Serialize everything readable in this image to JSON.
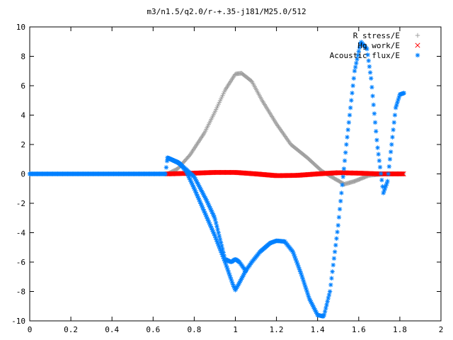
{
  "chart_data": {
    "type": "scatter",
    "title": "m3/n1.5/q2.0/r-+.35-j181/M25.0/512",
    "xlabel": "",
    "ylabel": "",
    "xlim": [
      0,
      2
    ],
    "ylim": [
      -10,
      10
    ],
    "grid": false,
    "legend_position": "top-right",
    "x_ticks": [
      "0",
      "0.2",
      "0.4",
      "0.6",
      "0.8",
      "1",
      "1.2",
      "1.4",
      "1.6",
      "1.8",
      "2"
    ],
    "y_ticks": [
      "10",
      "8",
      "6",
      "4",
      "2",
      "0",
      "-2",
      "-4",
      "-6",
      "-8",
      "-10"
    ],
    "series": [
      {
        "name": "R stress/E",
        "marker": "+",
        "color": "#a0a0a0",
        "x_range": [
          0.67,
          1.82
        ],
        "knots": [
          [
            0.67,
            0.0
          ],
          [
            0.72,
            0.35
          ],
          [
            0.78,
            1.3
          ],
          [
            0.85,
            2.8
          ],
          [
            0.9,
            4.2
          ],
          [
            0.95,
            5.7
          ],
          [
            1.0,
            6.8
          ],
          [
            1.03,
            6.85
          ],
          [
            1.08,
            6.3
          ],
          [
            1.13,
            5.0
          ],
          [
            1.2,
            3.4
          ],
          [
            1.27,
            2.0
          ],
          [
            1.35,
            1.1
          ],
          [
            1.42,
            0.2
          ],
          [
            1.48,
            -0.3
          ],
          [
            1.53,
            -0.7
          ],
          [
            1.58,
            -0.5
          ],
          [
            1.65,
            -0.1
          ],
          [
            1.72,
            0.0
          ],
          [
            1.82,
            0.0
          ]
        ]
      },
      {
        "name": "Hg work/E",
        "marker": "x",
        "color": "#ff0000",
        "x_range": [
          0.67,
          1.82
        ],
        "knots": [
          [
            0.67,
            0.0
          ],
          [
            0.8,
            0.05
          ],
          [
            0.9,
            0.1
          ],
          [
            1.0,
            0.1
          ],
          [
            1.1,
            0.0
          ],
          [
            1.2,
            -0.12
          ],
          [
            1.3,
            -0.1
          ],
          [
            1.4,
            0.0
          ],
          [
            1.5,
            0.08
          ],
          [
            1.6,
            0.05
          ],
          [
            1.7,
            0.0
          ],
          [
            1.82,
            0.0
          ]
        ]
      },
      {
        "name": "Acoustic flux/E",
        "marker": "*",
        "color": "#0080ff",
        "x_range": [
          0.0,
          1.82
        ],
        "knots": [
          [
            0.0,
            0.0
          ],
          [
            0.66,
            0.0
          ],
          [
            0.67,
            1.1
          ],
          [
            0.7,
            0.9
          ],
          [
            0.73,
            0.7
          ],
          [
            0.76,
            0.2
          ],
          [
            0.8,
            -1.0
          ],
          [
            0.85,
            -2.6
          ],
          [
            0.9,
            -4.2
          ],
          [
            0.95,
            -6.0
          ],
          [
            0.99,
            -7.6
          ],
          [
            1.0,
            -7.9
          ],
          [
            1.02,
            -7.4
          ],
          [
            1.05,
            -6.6
          ],
          [
            1.08,
            -6.0
          ],
          [
            1.12,
            -5.3
          ],
          [
            1.17,
            -4.7
          ],
          [
            1.2,
            -4.55
          ],
          [
            1.24,
            -4.6
          ],
          [
            1.28,
            -5.3
          ],
          [
            1.32,
            -6.8
          ],
          [
            1.36,
            -8.5
          ],
          [
            1.4,
            -9.6
          ],
          [
            1.43,
            -9.7
          ],
          [
            1.46,
            -8.0
          ],
          [
            1.5,
            -3.5
          ],
          [
            1.54,
            2.0
          ],
          [
            1.58,
            7.0
          ],
          [
            1.61,
            9.0
          ],
          [
            1.64,
            8.5
          ],
          [
            1.66,
            6.5
          ],
          [
            1.69,
            2.0
          ],
          [
            1.72,
            -1.3
          ],
          [
            1.74,
            -0.5
          ],
          [
            1.76,
            2.0
          ],
          [
            1.78,
            4.5
          ],
          [
            1.8,
            5.4
          ],
          [
            1.82,
            5.5
          ]
        ],
        "extra_knots": [
          [
            0.67,
            1.1
          ],
          [
            0.72,
            0.8
          ],
          [
            0.8,
            -0.2
          ],
          [
            0.86,
            -1.8
          ],
          [
            0.9,
            -3.0
          ],
          [
            0.95,
            -5.8
          ],
          [
            0.98,
            -6.0
          ],
          [
            1.0,
            -5.8
          ],
          [
            1.02,
            -6.0
          ],
          [
            1.05,
            -6.6
          ]
        ]
      }
    ]
  }
}
